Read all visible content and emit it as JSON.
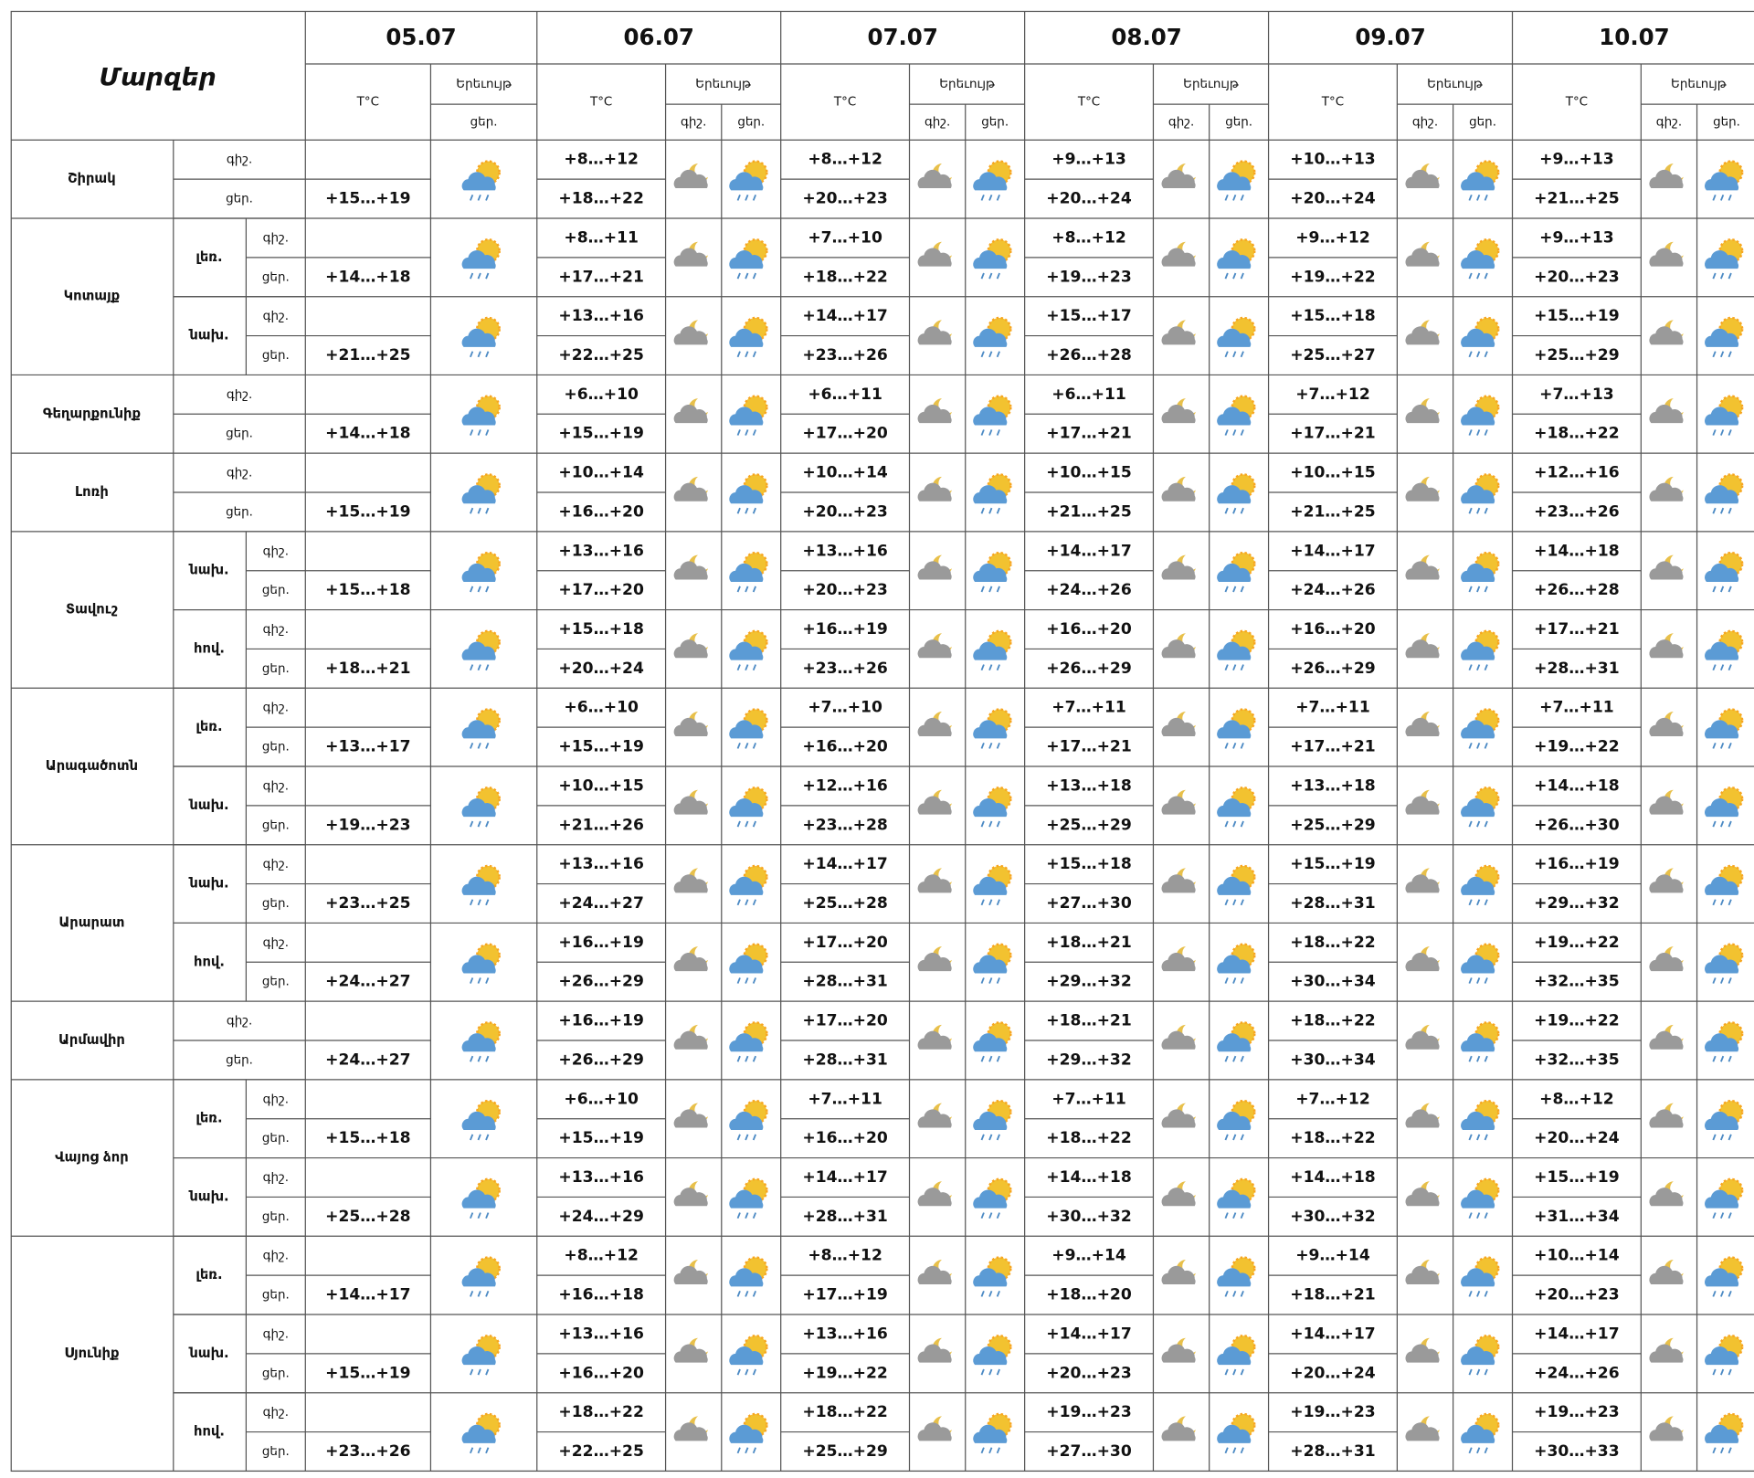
{
  "header": {
    "title": "Մարզեր",
    "dates": [
      "05.07",
      "06.07",
      "07.07",
      "08.07",
      "09.07",
      "10.07"
    ],
    "temp_label": "T°C",
    "weather_label": "Երեւույթ",
    "night_label": "գիշ.",
    "day_label": "ցեր."
  },
  "regions": [
    {
      "name": "Շիրակ",
      "parts": [
        {
          "night": [
            "+8…+12",
            "+8…+12",
            "+9…+13",
            "+10…+13",
            "+9…+13"
          ],
          "day": [
            "+15…+19",
            "+18…+22",
            "+20…+23",
            "+20…+24",
            "+20…+24",
            "+21…+25"
          ]
        }
      ]
    },
    {
      "name": "Կոտայք",
      "parts": [
        {
          "sub": "լեռ.",
          "night": [
            "+8…+11",
            "+7…+10",
            "+8…+12",
            "+9…+12",
            "+9…+13"
          ],
          "day": [
            "+14…+18",
            "+17…+21",
            "+18…+22",
            "+19…+23",
            "+19…+22",
            "+20…+23"
          ]
        },
        {
          "sub": "նախ.",
          "night": [
            "+13…+16",
            "+14…+17",
            "+15…+17",
            "+15…+18",
            "+15…+19"
          ],
          "day": [
            "+21…+25",
            "+22…+25",
            "+23…+26",
            "+26…+28",
            "+25…+27",
            "+25…+29"
          ]
        }
      ]
    },
    {
      "name": "Գեղարքունիք",
      "parts": [
        {
          "night": [
            "+6…+10",
            "+6…+11",
            "+6…+11",
            "+7…+12",
            "+7…+13"
          ],
          "day": [
            "+14…+18",
            "+15…+19",
            "+17…+20",
            "+17…+21",
            "+17…+21",
            "+18…+22"
          ]
        }
      ]
    },
    {
      "name": "Լոռի",
      "parts": [
        {
          "night": [
            "+10…+14",
            "+10…+14",
            "+10…+15",
            "+10…+15",
            "+12…+16"
          ],
          "day": [
            "+15…+19",
            "+16…+20",
            "+20…+23",
            "+21…+25",
            "+21…+25",
            "+23…+26"
          ]
        }
      ]
    },
    {
      "name": "Տավուշ",
      "parts": [
        {
          "sub": "նախ.",
          "night": [
            "+13…+16",
            "+13…+16",
            "+14…+17",
            "+14…+17",
            "+14…+18"
          ],
          "day": [
            "+15…+18",
            "+17…+20",
            "+20…+23",
            "+24…+26",
            "+24…+26",
            "+26…+28"
          ]
        },
        {
          "sub": "հով.",
          "night": [
            "+15…+18",
            "+16…+19",
            "+16…+20",
            "+16…+20",
            "+17…+21"
          ],
          "day": [
            "+18…+21",
            "+20…+24",
            "+23…+26",
            "+26…+29",
            "+26…+29",
            "+28…+31"
          ]
        }
      ]
    },
    {
      "name": "Արագածոտն",
      "parts": [
        {
          "sub": "լեռ.",
          "night": [
            "+6…+10",
            "+7…+10",
            "+7…+11",
            "+7…+11",
            "+7…+11"
          ],
          "day": [
            "+13…+17",
            "+15…+19",
            "+16…+20",
            "+17…+21",
            "+17…+21",
            "+19…+22"
          ]
        },
        {
          "sub": "նախ.",
          "night": [
            "+10…+15",
            "+12…+16",
            "+13…+18",
            "+13…+18",
            "+14…+18"
          ],
          "day": [
            "+19…+23",
            "+21…+26",
            "+23…+28",
            "+25…+29",
            "+25…+29",
            "+26…+30"
          ]
        }
      ]
    },
    {
      "name": "Արարատ",
      "parts": [
        {
          "sub": "նախ.",
          "night": [
            "+13…+16",
            "+14…+17",
            "+15…+18",
            "+15…+19",
            "+16…+19"
          ],
          "day": [
            "+23…+25",
            "+24…+27",
            "+25…+28",
            "+27…+30",
            "+28…+31",
            "+29…+32"
          ]
        },
        {
          "sub": "հով.",
          "night": [
            "+16…+19",
            "+17…+20",
            "+18…+21",
            "+18…+22",
            "+19…+22"
          ],
          "day": [
            "+24…+27",
            "+26…+29",
            "+28…+31",
            "+29…+32",
            "+30…+34",
            "+32…+35"
          ]
        }
      ]
    },
    {
      "name": "Արմավիր",
      "parts": [
        {
          "night": [
            "+16…+19",
            "+17…+20",
            "+18…+21",
            "+18…+22",
            "+19…+22"
          ],
          "day": [
            "+24…+27",
            "+26…+29",
            "+28…+31",
            "+29…+32",
            "+30…+34",
            "+32…+35"
          ]
        }
      ]
    },
    {
      "name": "Վայոց ձոր",
      "parts": [
        {
          "sub": "լեռ.",
          "night": [
            "+6…+10",
            "+7…+11",
            "+7…+11",
            "+7…+12",
            "+8…+12"
          ],
          "day": [
            "+15…+18",
            "+15…+19",
            "+16…+20",
            "+18…+22",
            "+18…+22",
            "+20…+24"
          ]
        },
        {
          "sub": "նախ.",
          "night": [
            "+13…+16",
            "+14…+17",
            "+14…+18",
            "+14…+18",
            "+15…+19"
          ],
          "day": [
            "+25…+28",
            "+24…+29",
            "+28…+31",
            "+30…+32",
            "+30…+32",
            "+31…+34"
          ]
        }
      ]
    },
    {
      "name": "Սյունիք",
      "parts": [
        {
          "sub": "լեռ.",
          "night": [
            "+8…+12",
            "+8…+12",
            "+9…+14",
            "+9…+14",
            "+10…+14"
          ],
          "day": [
            "+14…+17",
            "+16…+18",
            "+17…+19",
            "+18…+20",
            "+18…+21",
            "+20…+23"
          ]
        },
        {
          "sub": "նախ.",
          "night": [
            "+13…+16",
            "+13…+16",
            "+14…+17",
            "+14…+17",
            "+14…+17"
          ],
          "day": [
            "+15…+19",
            "+16…+20",
            "+19…+22",
            "+20…+23",
            "+20…+24",
            "+24…+26"
          ]
        },
        {
          "sub": "հով.",
          "night": [
            "+18…+22",
            "+18…+22",
            "+19…+23",
            "+19…+23",
            "+19…+23"
          ],
          "day": [
            "+23…+26",
            "+22…+25",
            "+25…+29",
            "+27…+30",
            "+28…+31",
            "+30…+33"
          ]
        }
      ]
    }
  ]
}
